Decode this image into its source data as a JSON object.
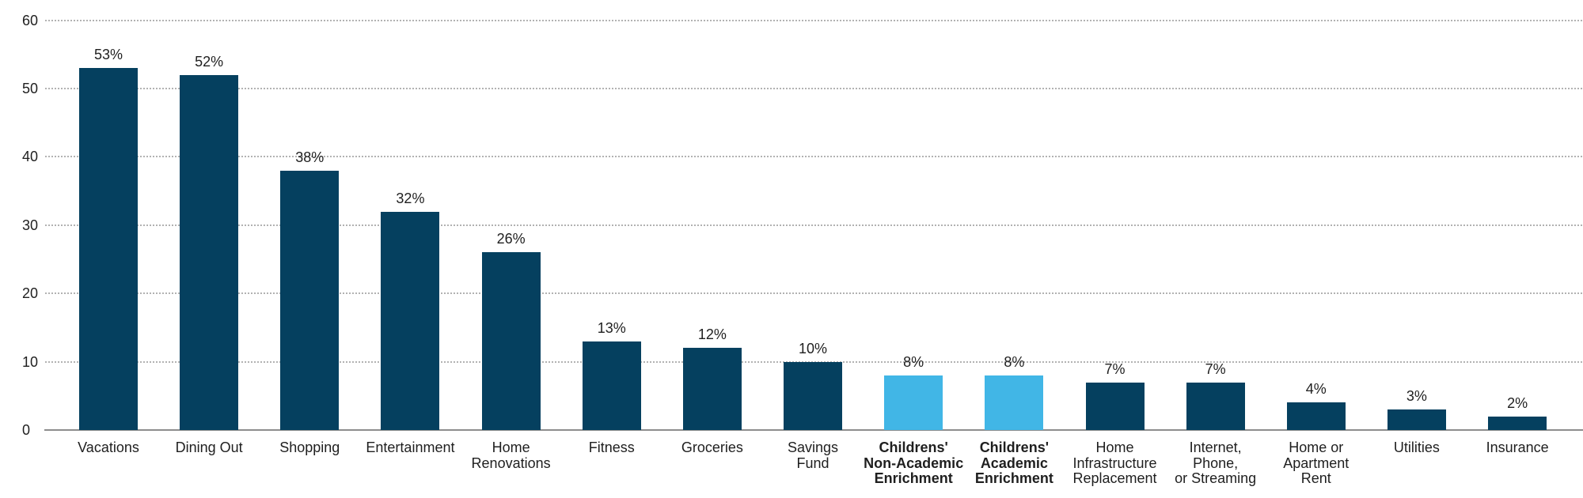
{
  "chart_data": {
    "type": "bar",
    "title": "",
    "xlabel": "",
    "ylabel": "",
    "ylim": [
      0,
      60
    ],
    "yticks": [
      0,
      10,
      20,
      30,
      40,
      50,
      60
    ],
    "grid": "horizontal-dotted",
    "legend_position": "none",
    "value_suffix": "%",
    "categories": [
      "Vacations",
      "Dining Out",
      "Shopping",
      "Entertainment",
      "Home Renovations",
      "Fitness",
      "Groceries",
      "Savings Fund",
      "Childrens' Non-Academic Enrichment",
      "Childrens' Academic Enrichment",
      "Home Infrastructure Replacement",
      "Internet, Phone, or Streaming",
      "Home or Apartment Rent",
      "Utilities",
      "Insurance"
    ],
    "values": [
      53,
      52,
      38,
      32,
      26,
      13,
      12,
      10,
      8,
      8,
      7,
      7,
      4,
      3,
      2
    ],
    "bars": [
      {
        "slug": "vacations",
        "label_lines": [
          "Vacations"
        ],
        "value": 53,
        "value_label": "53%",
        "bold": false,
        "highlight": false
      },
      {
        "slug": "dining-out",
        "label_lines": [
          "Dining Out"
        ],
        "value": 52,
        "value_label": "52%",
        "bold": false,
        "highlight": false
      },
      {
        "slug": "shopping",
        "label_lines": [
          "Shopping"
        ],
        "value": 38,
        "value_label": "38%",
        "bold": false,
        "highlight": false
      },
      {
        "slug": "entertainment",
        "label_lines": [
          "Entertainment"
        ],
        "value": 32,
        "value_label": "32%",
        "bold": false,
        "highlight": false
      },
      {
        "slug": "home-renovations",
        "label_lines": [
          "Home",
          "Renovations"
        ],
        "value": 26,
        "value_label": "26%",
        "bold": false,
        "highlight": false
      },
      {
        "slug": "fitness",
        "label_lines": [
          "Fitness"
        ],
        "value": 13,
        "value_label": "13%",
        "bold": false,
        "highlight": false
      },
      {
        "slug": "groceries",
        "label_lines": [
          "Groceries"
        ],
        "value": 12,
        "value_label": "12%",
        "bold": false,
        "highlight": false
      },
      {
        "slug": "savings-fund",
        "label_lines": [
          "Savings",
          "Fund"
        ],
        "value": 10,
        "value_label": "10%",
        "bold": false,
        "highlight": false
      },
      {
        "slug": "childrens-non-academic-enrichment",
        "label_lines": [
          "Childrens'",
          "Non-Academic",
          "Enrichment"
        ],
        "value": 8,
        "value_label": "8%",
        "bold": true,
        "highlight": true
      },
      {
        "slug": "childrens-academic-enrichment",
        "label_lines": [
          "Childrens'",
          "Academic",
          "Enrichment"
        ],
        "value": 8,
        "value_label": "8%",
        "bold": true,
        "highlight": true
      },
      {
        "slug": "home-infrastructure-replacement",
        "label_lines": [
          "Home",
          "Infrastructure",
          "Replacement"
        ],
        "value": 7,
        "value_label": "7%",
        "bold": false,
        "highlight": false
      },
      {
        "slug": "internet-phone-or-streaming",
        "label_lines": [
          "Internet,",
          "Phone,",
          "or Streaming"
        ],
        "value": 7,
        "value_label": "7%",
        "bold": false,
        "highlight": false
      },
      {
        "slug": "home-or-apartment-rent",
        "label_lines": [
          "Home or",
          "Apartment",
          "Rent"
        ],
        "value": 4,
        "value_label": "4%",
        "bold": false,
        "highlight": false
      },
      {
        "slug": "utilities",
        "label_lines": [
          "Utilities"
        ],
        "value": 3,
        "value_label": "3%",
        "bold": false,
        "highlight": false
      },
      {
        "slug": "insurance",
        "label_lines": [
          "Insurance"
        ],
        "value": 2,
        "value_label": "2%",
        "bold": false,
        "highlight": false
      }
    ],
    "colors": {
      "bar_default": "#05405f",
      "bar_highlight": "#41b6e6",
      "gridline": "#9f9f9f",
      "axis_line": "#8d8d8d",
      "text": "#1f1f1f",
      "background": "#ffffff"
    }
  }
}
